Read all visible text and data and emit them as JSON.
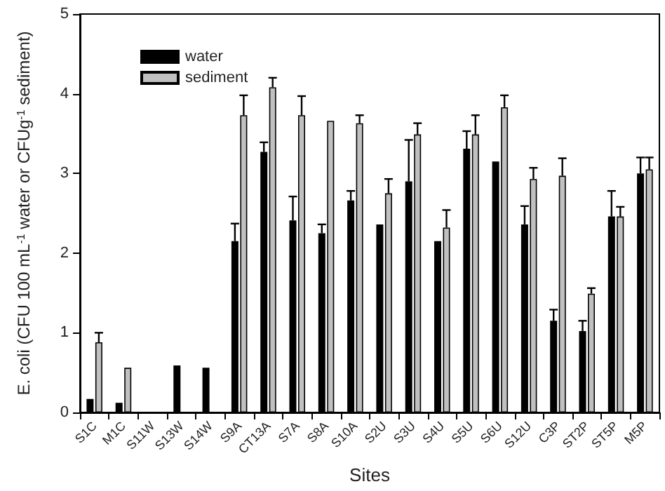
{
  "chart_data": {
    "type": "bar",
    "xlabel": "Sites",
    "ylabel": "E. coli (CFU 100 mL$^{-1}$ water or CFUg$^{-1}$ sediment)",
    "categories": [
      "S1C",
      "M1C",
      "S11W",
      "S13W",
      "S14W",
      "S9A",
      "CT13A",
      "S7A",
      "S8A",
      "S10A",
      "S2U",
      "S3U",
      "S4U",
      "S5U",
      "S6U",
      "S12U",
      "C3P",
      "ST2P",
      "ST5P",
      "M5P"
    ],
    "series": [
      {
        "name": "water",
        "color": "#000000",
        "values": [
          0.17,
          0.12,
          null,
          0.59,
          0.56,
          2.15,
          3.27,
          2.41,
          2.25,
          2.66,
          2.36,
          2.9,
          2.15,
          3.31,
          3.15,
          2.36,
          1.15,
          1.02,
          2.46,
          3.0
        ],
        "errors": [
          null,
          null,
          null,
          null,
          null,
          [
            2.15,
            2.37
          ],
          [
            3.27,
            3.39
          ],
          [
            2.41,
            2.71
          ],
          [
            2.25,
            2.36
          ],
          [
            2.66,
            2.78
          ],
          null,
          [
            2.9,
            3.42
          ],
          null,
          [
            3.31,
            3.53
          ],
          null,
          [
            2.36,
            2.59
          ],
          [
            1.15,
            1.29
          ],
          [
            1.02,
            1.15
          ],
          [
            2.46,
            2.78
          ],
          [
            3.0,
            3.2
          ]
        ]
      },
      {
        "name": "sediment",
        "color": "#c0c0c0",
        "values": [
          0.88,
          0.56,
          null,
          null,
          null,
          3.73,
          4.08,
          3.73,
          3.66,
          3.63,
          2.75,
          3.49,
          2.32,
          3.49,
          3.83,
          2.93,
          2.97,
          1.49,
          2.46,
          3.05
        ],
        "errors": [
          [
            0.88,
            1.0
          ],
          null,
          null,
          null,
          null,
          [
            3.73,
            3.98
          ],
          [
            4.08,
            4.2
          ],
          [
            3.73,
            3.97
          ],
          null,
          [
            3.63,
            3.73
          ],
          [
            2.75,
            2.93
          ],
          [
            3.49,
            3.63
          ],
          [
            2.32,
            2.54
          ],
          [
            3.49,
            3.73
          ],
          [
            3.83,
            3.98
          ],
          [
            2.93,
            3.07
          ],
          [
            2.97,
            3.19
          ],
          [
            1.49,
            1.56
          ],
          [
            2.46,
            2.58
          ],
          [
            3.05,
            3.2
          ]
        ]
      }
    ],
    "ylim": [
      0,
      5
    ],
    "yticks": [
      0,
      1,
      2,
      3,
      4,
      5
    ],
    "legend": "top left",
    "grid": false
  }
}
